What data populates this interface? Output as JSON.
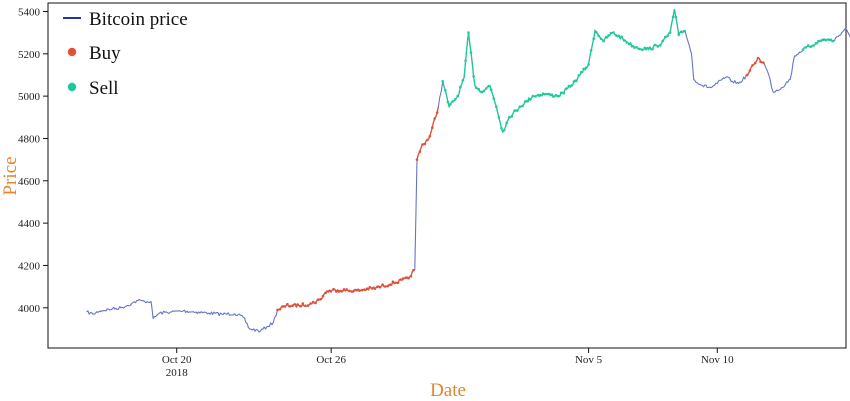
{
  "chart_data": {
    "type": "line",
    "xlabel": "Date",
    "ylabel": "Price",
    "ylim": [
      3810,
      5440
    ],
    "xlim": [
      "2018-10-15",
      "2018-11-15"
    ],
    "x_ticks": [
      {
        "date": "2018-10-20",
        "label": "Oct 20",
        "sublabel": "2018"
      },
      {
        "date": "2018-10-26",
        "label": "Oct 26",
        "sublabel": ""
      },
      {
        "date": "2018-11-05",
        "label": "Nov 5",
        "sublabel": ""
      },
      {
        "date": "2018-11-10",
        "label": "Nov 10",
        "sublabel": ""
      }
    ],
    "y_ticks": [
      4000,
      4200,
      4400,
      4600,
      4800,
      5000,
      5200,
      5400
    ],
    "grid": false,
    "legend": {
      "placement": "top-left",
      "entries": [
        {
          "label": "Bitcoin price",
          "marker": "line",
          "color": "#2233aa"
        },
        {
          "label": "Buy",
          "marker": "dot",
          "color": "#e0513a"
        },
        {
          "label": "Sell",
          "marker": "dot",
          "color": "#1ec99a"
        }
      ]
    },
    "series": [
      {
        "name": "Bitcoin price",
        "color": "#6674c9",
        "points": [
          [
            "2018-10-16T12:00",
            3980
          ],
          [
            "2018-10-16T18:00",
            3970
          ],
          [
            "2018-10-17T00:00",
            3985
          ],
          [
            "2018-10-17T12:00",
            3995
          ],
          [
            "2018-10-17T20:00",
            4000
          ],
          [
            "2018-10-18T06:00",
            4020
          ],
          [
            "2018-10-18T12:00",
            4035
          ],
          [
            "2018-10-18T18:00",
            4030
          ],
          [
            "2018-10-19T00:00",
            4030
          ],
          [
            "2018-10-19T02:00",
            3950
          ],
          [
            "2018-10-19T08:00",
            3975
          ],
          [
            "2018-10-19T18:00",
            3980
          ],
          [
            "2018-10-20T06:00",
            3985
          ],
          [
            "2018-10-20T18:00",
            3980
          ],
          [
            "2018-10-21T06:00",
            3975
          ],
          [
            "2018-10-21T18:00",
            3970
          ],
          [
            "2018-10-22T06:00",
            3972
          ],
          [
            "2018-10-22T14:00",
            3955
          ],
          [
            "2018-10-22T20:00",
            3900
          ],
          [
            "2018-10-23T06:00",
            3890
          ],
          [
            "2018-10-23T12:00",
            3910
          ],
          [
            "2018-10-23T18:00",
            3930
          ],
          [
            "2018-10-23T22:00",
            3990
          ],
          [
            "2018-10-24T06:00",
            4010
          ],
          [
            "2018-10-24T18:00",
            4010
          ],
          [
            "2018-10-25T06:00",
            4020
          ],
          [
            "2018-10-25T14:00",
            4040
          ],
          [
            "2018-10-25T20:00",
            4080
          ],
          [
            "2018-10-26T06:00",
            4085
          ],
          [
            "2018-10-26T18:00",
            4080
          ],
          [
            "2018-10-27T06:00",
            4085
          ],
          [
            "2018-10-27T18:00",
            4095
          ],
          [
            "2018-10-28T06:00",
            4110
          ],
          [
            "2018-10-28T18:00",
            4130
          ],
          [
            "2018-10-29T00:00",
            4140
          ],
          [
            "2018-10-29T06:00",
            4180
          ],
          [
            "2018-10-29T08:00",
            4700
          ],
          [
            "2018-10-29T12:00",
            4760
          ],
          [
            "2018-10-29T20:00",
            4810
          ],
          [
            "2018-10-30T04:00",
            4950
          ],
          [
            "2018-10-30T08:00",
            5070
          ],
          [
            "2018-10-30T14:00",
            4950
          ],
          [
            "2018-10-30T22:00",
            5000
          ],
          [
            "2018-10-31T04:00",
            5090
          ],
          [
            "2018-10-31T08:00",
            5300
          ],
          [
            "2018-10-31T14:00",
            5050
          ],
          [
            "2018-10-31T20:00",
            5020
          ],
          [
            "2018-11-01T04:00",
            5050
          ],
          [
            "2018-11-01T10:00",
            4950
          ],
          [
            "2018-11-01T16:00",
            4830
          ],
          [
            "2018-11-01T22:00",
            4900
          ],
          [
            "2018-11-02T08:00",
            4950
          ],
          [
            "2018-11-02T20:00",
            5000
          ],
          [
            "2018-11-03T08:00",
            5010
          ],
          [
            "2018-11-03T20:00",
            5000
          ],
          [
            "2018-11-04T08:00",
            5050
          ],
          [
            "2018-11-04T16:00",
            5100
          ],
          [
            "2018-11-05T00:00",
            5150
          ],
          [
            "2018-11-05T06:00",
            5310
          ],
          [
            "2018-11-05T14:00",
            5260
          ],
          [
            "2018-11-05T22:00",
            5300
          ],
          [
            "2018-11-06T08:00",
            5270
          ],
          [
            "2018-11-06T20:00",
            5230
          ],
          [
            "2018-11-07T08:00",
            5220
          ],
          [
            "2018-11-07T20:00",
            5250
          ],
          [
            "2018-11-08T04:00",
            5300
          ],
          [
            "2018-11-08T08:00",
            5410
          ],
          [
            "2018-11-08T12:00",
            5290
          ],
          [
            "2018-11-08T18:00",
            5310
          ],
          [
            "2018-11-09T00:00",
            5200
          ],
          [
            "2018-11-09T02:00",
            5080
          ],
          [
            "2018-11-09T10:00",
            5050
          ],
          [
            "2018-11-09T18:00",
            5040
          ],
          [
            "2018-11-10T00:00",
            5060
          ],
          [
            "2018-11-10T08:00",
            5090
          ],
          [
            "2018-11-10T14:00",
            5070
          ],
          [
            "2018-11-10T20:00",
            5060
          ],
          [
            "2018-11-11T04:00",
            5100
          ],
          [
            "2018-11-11T10:00",
            5150
          ],
          [
            "2018-11-11T14:00",
            5180
          ],
          [
            "2018-11-11T20:00",
            5150
          ],
          [
            "2018-11-12T00:00",
            5100
          ],
          [
            "2018-11-12T04:00",
            5020
          ],
          [
            "2018-11-12T12:00",
            5040
          ],
          [
            "2018-11-12T20:00",
            5080
          ],
          [
            "2018-11-13T00:00",
            5190
          ],
          [
            "2018-11-13T08:00",
            5220
          ],
          [
            "2018-11-13T20:00",
            5250
          ],
          [
            "2018-11-14T04:00",
            5270
          ],
          [
            "2018-11-14T12:00",
            5260
          ],
          [
            "2018-11-14T20:00",
            5300
          ],
          [
            "2018-11-15T00:00",
            5320
          ],
          [
            "2018-11-15T04:00",
            5280
          ]
        ]
      },
      {
        "name": "Buy",
        "color": "#e0513a",
        "segments": [
          [
            "2018-10-23T22:00",
            "2018-10-29T06:00"
          ],
          [
            "2018-10-29T08:00",
            "2018-10-30T04:00"
          ],
          [
            "2018-11-11T04:00",
            "2018-11-11T20:00"
          ]
        ]
      },
      {
        "name": "Sell",
        "color": "#1ec99a",
        "segments": [
          [
            "2018-10-30T08:00",
            "2018-11-08T18:00"
          ],
          [
            "2018-11-13T08:00",
            "2018-11-14T12:00"
          ]
        ]
      }
    ]
  }
}
